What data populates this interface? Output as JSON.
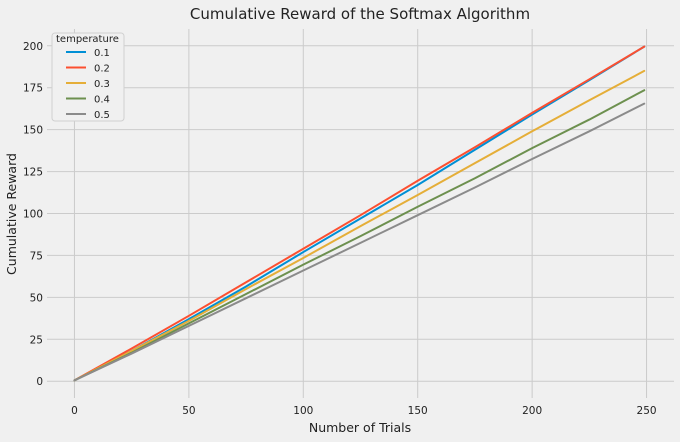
{
  "chart_data": {
    "type": "line",
    "title": "Cumulative Reward of the Softmax Algorithm",
    "xlabel": "Number of Trials",
    "ylabel": "Cumulative Reward",
    "xlim": [
      -12,
      262
    ],
    "ylim": [
      -10,
      210
    ],
    "xticks": [
      0,
      50,
      100,
      150,
      200,
      250
    ],
    "yticks": [
      0,
      25,
      50,
      75,
      100,
      125,
      150,
      175,
      200
    ],
    "grid": true,
    "legend": {
      "title": "temperature",
      "position": "top-left"
    },
    "series": [
      {
        "name": "0.1",
        "color": "#008fd5",
        "x": [
          0,
          25,
          50,
          75,
          100,
          125,
          150,
          175,
          200,
          225,
          249
        ],
        "y": [
          0.5,
          18,
          37,
          56.5,
          77,
          97,
          117,
          138,
          159,
          179.5,
          199.5
        ]
      },
      {
        "name": "0.2",
        "color": "#fc4f30",
        "x": [
          0,
          25,
          50,
          75,
          100,
          125,
          150,
          175,
          200,
          225,
          249
        ],
        "y": [
          0.5,
          19.5,
          39,
          59,
          79,
          99,
          119.5,
          139.5,
          160,
          180,
          199.5
        ]
      },
      {
        "name": "0.3",
        "color": "#e5ae38",
        "x": [
          0,
          25,
          50,
          75,
          100,
          125,
          150,
          175,
          200,
          225,
          249
        ],
        "y": [
          0.5,
          18,
          36,
          55,
          73.5,
          92.5,
          111,
          130,
          149,
          167.5,
          185
        ]
      },
      {
        "name": "0.4",
        "color": "#6d904f",
        "x": [
          0,
          25,
          50,
          75,
          100,
          125,
          150,
          175,
          200,
          225,
          249
        ],
        "y": [
          0.5,
          17,
          34.5,
          52,
          69.5,
          86.5,
          104,
          121,
          139,
          156,
          173.5
        ]
      },
      {
        "name": "0.5",
        "color": "#8b8b8b",
        "x": [
          0,
          25,
          50,
          75,
          100,
          125,
          150,
          175,
          200,
          225,
          249
        ],
        "y": [
          0.5,
          16.5,
          33,
          49.5,
          66,
          82.5,
          99,
          115.5,
          132.5,
          149,
          165.5
        ]
      }
    ]
  }
}
